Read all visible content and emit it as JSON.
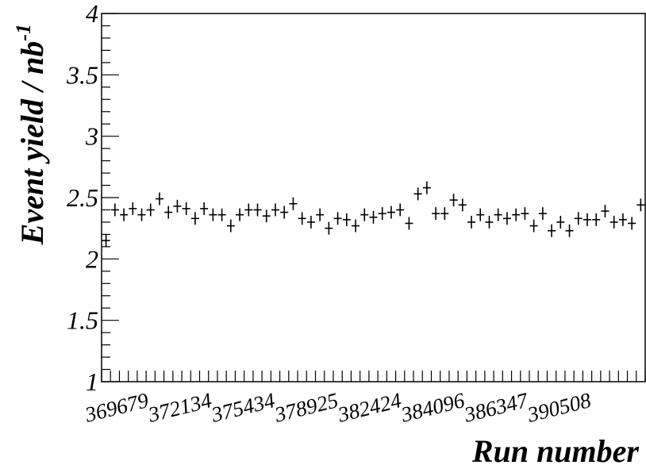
{
  "chart_data": {
    "type": "scatter",
    "marker": "cross",
    "xlabel": "Run number",
    "ylabel": "Event yield / nb",
    "ylabel_superscript": "-1",
    "ylim": [
      1,
      4
    ],
    "y_ticks": [
      "1",
      "1.5",
      "2",
      "2.5",
      "3",
      "3.5",
      "4"
    ],
    "x_tick_labels": [
      "369679",
      "372134",
      "375434",
      "378925",
      "382424",
      "384096",
      "386347",
      "390508"
    ],
    "grid": false,
    "legend": "none",
    "values": [
      2.15,
      2.4,
      2.36,
      2.41,
      2.36,
      2.4,
      2.49,
      2.38,
      2.43,
      2.41,
      2.33,
      2.41,
      2.36,
      2.36,
      2.27,
      2.36,
      2.4,
      2.4,
      2.35,
      2.4,
      2.38,
      2.45,
      2.33,
      2.3,
      2.36,
      2.25,
      2.33,
      2.32,
      2.27,
      2.36,
      2.34,
      2.37,
      2.38,
      2.4,
      2.29,
      2.53,
      2.58,
      2.37,
      2.37,
      2.48,
      2.44,
      2.3,
      2.36,
      2.3,
      2.36,
      2.33,
      2.36,
      2.37,
      2.27,
      2.37,
      2.23,
      2.3,
      2.23,
      2.33,
      2.32,
      2.32,
      2.39,
      2.3,
      2.32,
      2.29,
      2.44
    ]
  }
}
